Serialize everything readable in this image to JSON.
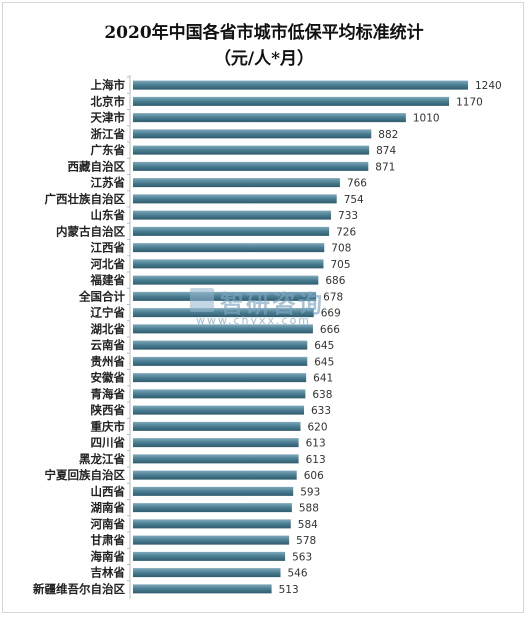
{
  "chart_data": {
    "type": "bar",
    "orientation": "horizontal",
    "title": "2020年中国各省市城市低保平均标准统计",
    "subtitle": "（元/人*月）",
    "categories": [
      "上海市",
      "北京市",
      "天津市",
      "浙江省",
      "广东省",
      "西藏自治区",
      "江苏省",
      "广西壮族自治区",
      "山东省",
      "内蒙古自治区",
      "江西省",
      "河北省",
      "福建省",
      "全国合计",
      "辽宁省",
      "湖北省",
      "云南省",
      "贵州省",
      "安徽省",
      "青海省",
      "陕西省",
      "重庆市",
      "四川省",
      "黑龙江省",
      "宁夏回族自治区",
      "山西省",
      "湖南省",
      "河南省",
      "甘肃省",
      "海南省",
      "吉林省",
      "新疆维吾尔自治区"
    ],
    "values": [
      1240,
      1170,
      1010,
      882,
      874,
      871,
      766,
      754,
      733,
      726,
      708,
      705,
      686,
      678,
      669,
      666,
      645,
      645,
      641,
      638,
      633,
      620,
      613,
      613,
      606,
      593,
      588,
      584,
      578,
      563,
      546,
      513
    ],
    "xlim": [
      0,
      1300
    ],
    "grid": false,
    "legend": "none",
    "bar_color": "#4a7d92"
  },
  "watermark": {
    "text": "智研咨询",
    "url": "www.chyxx.com"
  }
}
